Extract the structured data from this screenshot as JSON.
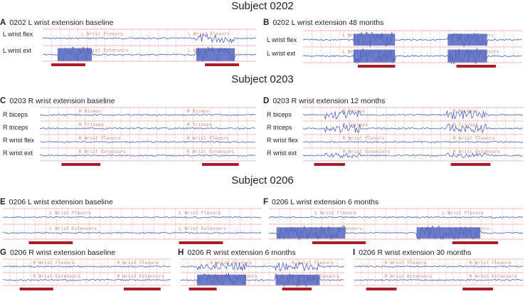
{
  "subjects": [
    "Subject 0202",
    "Subject 0203",
    "Subject 0206"
  ],
  "colors": {
    "trace": "#4a5fb8",
    "burst": "#5566c0",
    "grid": "#e2a0a0",
    "bar": "#a81e2a"
  },
  "panels": {
    "A": {
      "letter": "A",
      "title": "0202 L wrist extension baseline",
      "channels": [
        {
          "label": "L wrist flex",
          "embedded": "L Wrist Flexors",
          "bursts": [
            [
              0.72,
              0.9,
              0.5
            ]
          ]
        },
        {
          "label": "L wrist ext",
          "embedded": "L Wrist Extensors",
          "bursts": [
            [
              0.07,
              0.23,
              1
            ],
            [
              0.72,
              0.9,
              1
            ]
          ]
        }
      ]
    },
    "B": {
      "letter": "B",
      "title": "0202 L wrist extension 48 months",
      "channels": [
        {
          "label": "L wrist flex",
          "embedded": "L Wrist Flexors",
          "bursts": [
            [
              0.23,
              0.42,
              0.9
            ],
            [
              0.66,
              0.84,
              0.9
            ]
          ]
        },
        {
          "label": "L wrist ext",
          "embedded": "L Wrist Extensors",
          "bursts": [
            [
              0.23,
              0.42,
              1
            ],
            [
              0.66,
              0.84,
              1
            ]
          ]
        }
      ]
    },
    "C": {
      "letter": "C",
      "title": "0203 R wrist extension baseline",
      "channels": [
        {
          "label": "R biceps",
          "embedded": "R Biceps",
          "bursts": []
        },
        {
          "label": "R triceps",
          "embedded": "R Triceps",
          "bursts": []
        },
        {
          "label": "R wrist flex",
          "embedded": "R Wrist Flexors",
          "bursts": []
        },
        {
          "label": "R wrist ext",
          "embedded": "R Wrist Extensors",
          "bursts": []
        }
      ]
    },
    "D": {
      "letter": "D",
      "title": "0203 R wrist extension 12 months",
      "channels": [
        {
          "label": "R biceps",
          "embedded": "R Biceps",
          "bursts": [
            [
              0.1,
              0.26,
              0.6
            ],
            [
              0.65,
              0.83,
              0.6
            ]
          ]
        },
        {
          "label": "R triceps",
          "embedded": "R Triceps",
          "bursts": [
            [
              0.1,
              0.26,
              0.6
            ],
            [
              0.65,
              0.83,
              0.6
            ]
          ]
        },
        {
          "label": "R wrist flex",
          "embedded": "R Wrist Flexors",
          "bursts": []
        },
        {
          "label": "R wrist ext",
          "embedded": "R Wrist Extensors",
          "bursts": [
            [
              0.1,
              0.26,
              0.3
            ],
            [
              0.65,
              0.83,
              0.3
            ]
          ]
        }
      ]
    },
    "E": {
      "letter": "E",
      "title": "0206 L wrist extension baseline",
      "channels": [
        {
          "label": "",
          "embedded": "L Wrist Flexors",
          "bursts": []
        },
        {
          "label": "",
          "embedded": "L Wrist Extensors",
          "bursts": []
        }
      ]
    },
    "F": {
      "letter": "F",
      "title": "0206 L wrist extension 6 months",
      "channels": [
        {
          "label": "",
          "embedded": "L Wrist Flexors",
          "bursts": []
        },
        {
          "label": "",
          "embedded": "L Wrist Extensors",
          "bursts": [
            [
              0.03,
              0.3,
              0.9
            ],
            [
              0.58,
              0.83,
              0.9
            ]
          ]
        }
      ]
    },
    "G": {
      "letter": "G",
      "title": "0206 R wrist extension baseline",
      "channels": [
        {
          "label": "",
          "embedded": "R Wrist Flexors",
          "bursts": []
        },
        {
          "label": "",
          "embedded": "R Wrist Extensors",
          "bursts": []
        }
      ]
    },
    "H": {
      "letter": "H",
      "title": "0206 R wrist extension 6 months",
      "channels": [
        {
          "label": "",
          "embedded": "R Wrist Flexors",
          "bursts": [
            [
              0.1,
              0.4,
              0.6
            ],
            [
              0.58,
              0.85,
              0.6
            ]
          ]
        },
        {
          "label": "",
          "embedded": "R Wrist Extensors",
          "bursts": [
            [
              0.1,
              0.4,
              1
            ],
            [
              0.58,
              0.85,
              1
            ]
          ]
        }
      ]
    },
    "I": {
      "letter": "I",
      "title": "0206 R wrist extension 30 months",
      "channels": [
        {
          "label": "",
          "embedded": "R Wrist Flexors",
          "bursts": []
        },
        {
          "label": "",
          "embedded": "R Wrist Extensors",
          "bursts": []
        }
      ]
    }
  },
  "extension_bars": {
    "A": [
      [
        0.04,
        0.2
      ],
      [
        0.76,
        0.92
      ]
    ],
    "B": [
      [
        0.25,
        0.42
      ],
      [
        0.7,
        0.88
      ]
    ],
    "C": [
      [
        0.1,
        0.28
      ],
      [
        0.75,
        0.92
      ]
    ],
    "D": [
      [
        0.05,
        0.19
      ],
      [
        0.67,
        0.85
      ]
    ],
    "E": [
      [
        0.1,
        0.27
      ],
      [
        0.68,
        0.85
      ]
    ],
    "F": [
      [
        0.17,
        0.38
      ],
      [
        0.72,
        0.9
      ]
    ],
    "G": [
      [
        0.1,
        0.3
      ],
      [
        0.72,
        0.94
      ]
    ],
    "H": [
      [
        0.05,
        0.22
      ],
      [
        0.62,
        0.8
      ]
    ],
    "I": [
      [
        0.07,
        0.25
      ],
      [
        0.64,
        0.82
      ]
    ]
  }
}
